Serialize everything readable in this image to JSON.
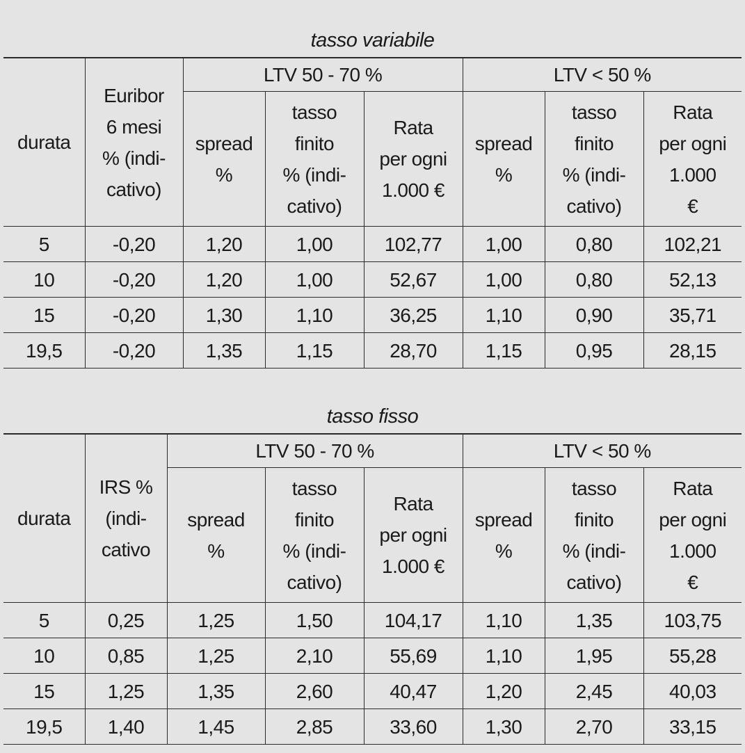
{
  "tables": [
    {
      "title": "tasso variabile",
      "group_headers": [
        "LTV 50 - 70 %",
        "LTV < 50 %"
      ],
      "headers": [
        "durata",
        "Euribor\n6 mesi\n% (indi-\ncativo)",
        "spread\n%",
        "tasso\nfinito\n% (indi-\ncativo)",
        "Rata\nper ogni\n1.000 €",
        "spread\n%",
        "tasso\nfinito\n% (indi-\ncativo)",
        "Rata\nper ogni\n1.000\n€"
      ],
      "rows": [
        [
          "5",
          "-0,20",
          "1,20",
          "1,00",
          "102,77",
          "1,00",
          "0,80",
          "102,21"
        ],
        [
          "10",
          "-0,20",
          "1,20",
          "1,00",
          "52,67",
          "1,00",
          "0,80",
          "52,13"
        ],
        [
          "15",
          "-0,20",
          "1,30",
          "1,10",
          "36,25",
          "1,10",
          "0,90",
          "35,71"
        ],
        [
          "19,5",
          "-0,20",
          "1,35",
          "1,15",
          "28,70",
          "1,15",
          "0,95",
          "28,15"
        ]
      ]
    },
    {
      "title": "tasso fisso",
      "group_headers": [
        "LTV 50 - 70 %",
        "LTV < 50 %"
      ],
      "headers": [
        "durata",
        "IRS %\n(indi-\ncativo",
        "spread\n%",
        "tasso\nfinito\n% (indi-\ncativo)",
        "Rata\nper ogni\n1.000 €",
        "spread\n%",
        "tasso\nfinito\n% (indi-\ncativo)",
        "Rata\nper ogni\n1.000\n€"
      ],
      "rows": [
        [
          "5",
          "0,25",
          "1,25",
          "1,50",
          "104,17",
          "1,10",
          "1,35",
          "103,75"
        ],
        [
          "10",
          "0,85",
          "1,25",
          "2,10",
          "55,69",
          "1,10",
          "1,95",
          "55,28"
        ],
        [
          "15",
          "1,25",
          "1,35",
          "2,60",
          "40,47",
          "1,20",
          "2,45",
          "40,03"
        ],
        [
          "19,5",
          "1,40",
          "1,45",
          "2,85",
          "33,60",
          "1,30",
          "2,70",
          "33,15"
        ]
      ]
    }
  ]
}
